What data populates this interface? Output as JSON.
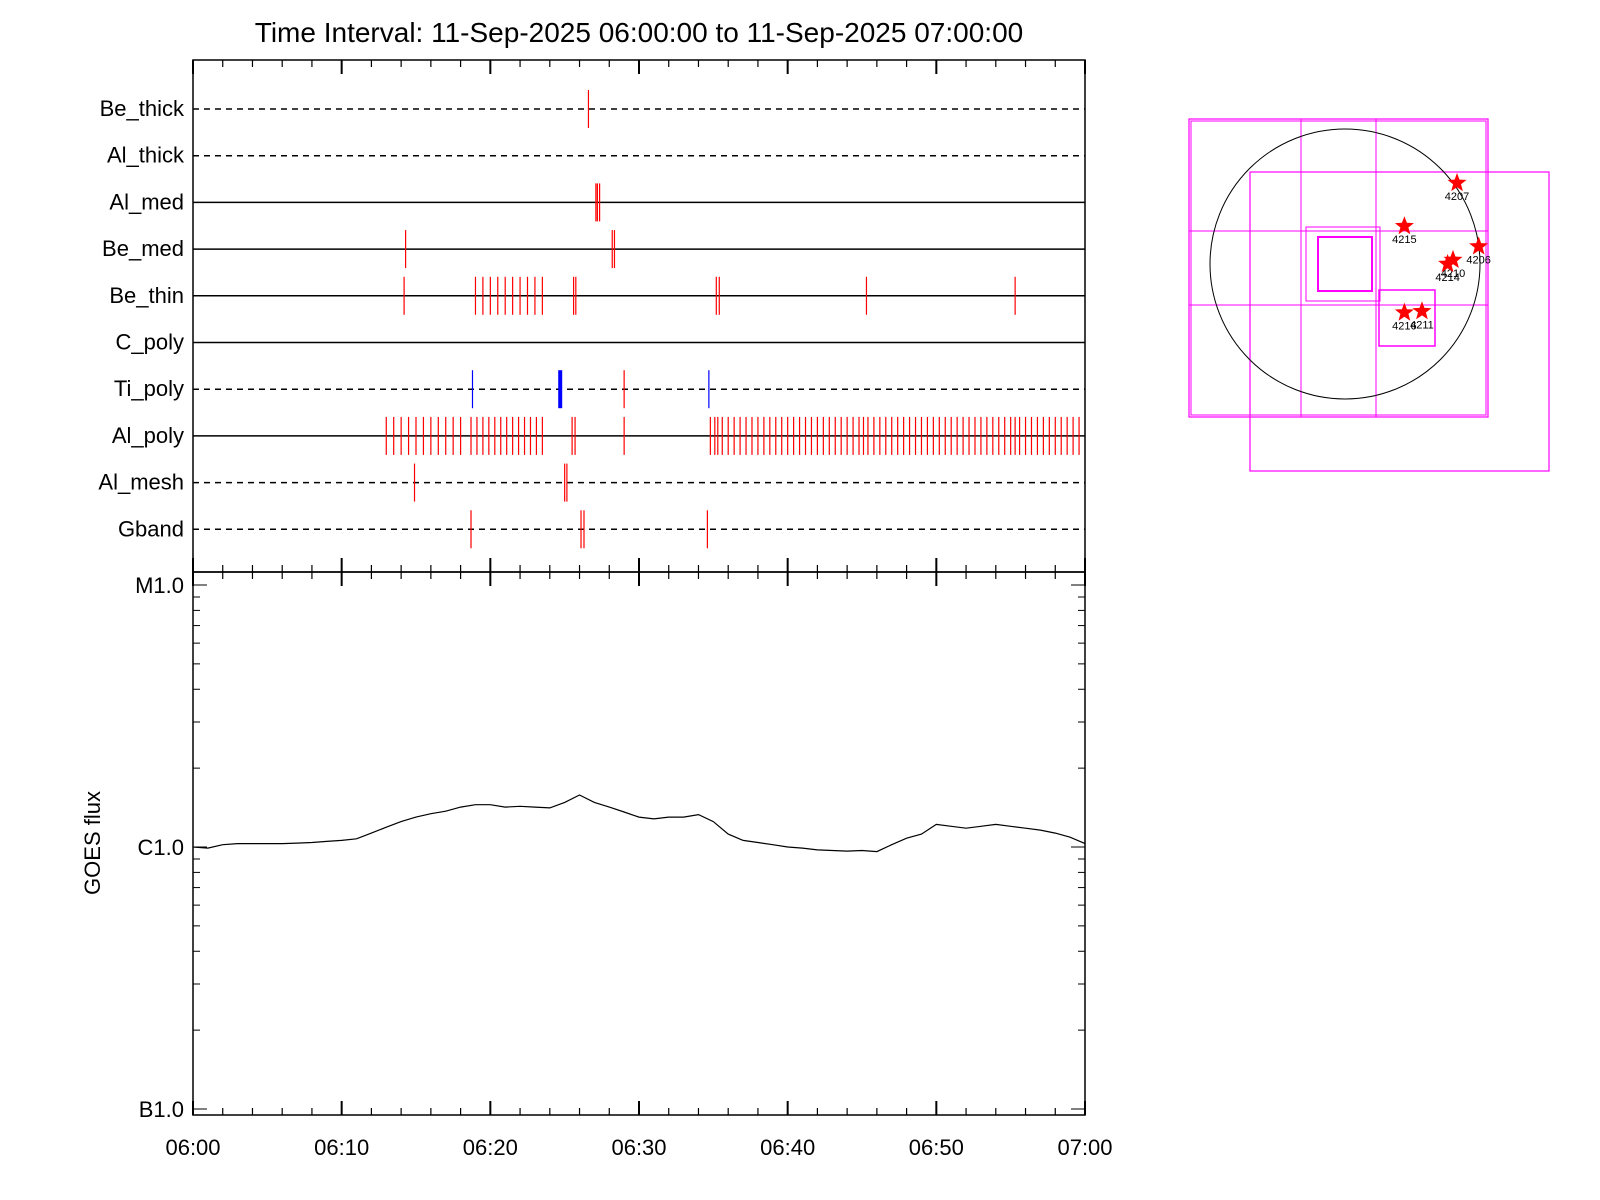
{
  "title": "Time Interval: 11-Sep-2025 06:00:00 to 11-Sep-2025 07:00:00",
  "colors": {
    "obs": "#ff0000",
    "flare": "#0000ff",
    "box": "#ff00ff",
    "star": "#ff0000",
    "line": "#000000"
  },
  "chart_data": [
    {
      "type": "event-timeline",
      "x_range_min": [
        0,
        60
      ],
      "x_unit": "minutes after 06:00",
      "filters": [
        {
          "name": "Be_thick",
          "style": "dashed"
        },
        {
          "name": "Al_thick",
          "style": "dashed"
        },
        {
          "name": "Al_med",
          "style": "solid"
        },
        {
          "name": "Be_med",
          "style": "solid"
        },
        {
          "name": "Be_thin",
          "style": "solid"
        },
        {
          "name": "C_poly",
          "style": "solid"
        },
        {
          "name": "Ti_poly",
          "style": "dashed"
        },
        {
          "name": "Al_poly",
          "style": "solid"
        },
        {
          "name": "Al_mesh",
          "style": "dashed"
        },
        {
          "name": "Gband",
          "style": "dashed"
        }
      ],
      "events": [
        {
          "filter": "Be_thick",
          "color": "red",
          "times": [
            26.6
          ]
        },
        {
          "filter": "Al_med",
          "color": "red",
          "times": [
            27.1,
            27.2,
            27.35
          ]
        },
        {
          "filter": "Be_med",
          "color": "red",
          "times": [
            14.3,
            28.2,
            28.35
          ]
        },
        {
          "filter": "Be_thin",
          "color": "red",
          "times": [
            14.2,
            19.0,
            19.5,
            20.0,
            20.5,
            21.0,
            21.5,
            22.0,
            22.5,
            23.0,
            23.5,
            25.6,
            25.75,
            35.2,
            35.4,
            45.3,
            55.3
          ]
        },
        {
          "filter": "Ti_poly",
          "color": "blue",
          "times": [
            18.8,
            34.7
          ]
        },
        {
          "filter": "Ti_poly",
          "color": "blue-thick",
          "times": [
            24.7
          ]
        },
        {
          "filter": "Ti_poly",
          "color": "red",
          "times": [
            29.0
          ]
        },
        {
          "filter": "Al_poly",
          "color": "red",
          "times": [
            13.0,
            13.5,
            14.0,
            14.5,
            15.0,
            15.5,
            16.0,
            16.5,
            17.0,
            17.5,
            18.0,
            18.7,
            19.1,
            19.5,
            19.9,
            20.3,
            20.7,
            21.1,
            21.5,
            21.9,
            22.3,
            22.7,
            23.1,
            23.5,
            25.5,
            25.7,
            29.0,
            34.8,
            35.1,
            35.3,
            35.6,
            36.0,
            36.4,
            36.8,
            37.2,
            37.6,
            38.0,
            38.4,
            38.8,
            39.2,
            39.6,
            40.0,
            40.4,
            40.8,
            41.2,
            41.6,
            42.0,
            42.4,
            42.8,
            43.2,
            43.6,
            44.0,
            44.4,
            44.8,
            45.1,
            45.4,
            45.8,
            46.2,
            46.6,
            47.0,
            47.4,
            47.8,
            48.2,
            48.6,
            49.0,
            49.4,
            49.8,
            50.2,
            50.6,
            51.0,
            51.4,
            51.8,
            52.2,
            52.6,
            53.0,
            53.4,
            53.8,
            54.2,
            54.6,
            55.0,
            55.3,
            55.6,
            56.0,
            56.4,
            56.8,
            57.2,
            57.6,
            58.0,
            58.4,
            58.8,
            59.2,
            59.6
          ]
        },
        {
          "filter": "Al_mesh",
          "color": "red",
          "times": [
            14.9,
            25.0,
            25.15
          ]
        },
        {
          "filter": "Gband",
          "color": "red",
          "times": [
            18.7,
            26.1,
            26.3,
            34.6
          ]
        }
      ]
    },
    {
      "type": "line",
      "ylabel": "GOES flux",
      "xlabel": "",
      "y_scale": "log",
      "ylim": [
        1e-07,
        1e-05
      ],
      "y_ticks": [
        {
          "value": 1e-05,
          "label": "M1.0"
        },
        {
          "value": 1e-06,
          "label": "C1.0"
        },
        {
          "value": 1e-07,
          "label": "B1.0"
        }
      ],
      "x_ticks": [
        "06:00",
        "06:10",
        "06:20",
        "06:30",
        "06:40",
        "06:50",
        "07:00"
      ],
      "x_minutes": [
        0,
        1,
        2,
        3,
        4,
        5,
        6,
        7,
        8,
        9,
        10,
        11,
        12,
        13,
        14,
        15,
        16,
        17,
        18,
        19,
        20,
        21,
        22,
        23,
        24,
        25,
        26,
        27,
        28,
        29,
        30,
        31,
        32,
        33,
        34,
        35,
        36,
        37,
        38,
        39,
        40,
        41,
        42,
        43,
        44,
        45,
        46,
        47,
        48,
        49,
        50,
        51,
        52,
        53,
        54,
        55,
        56,
        57,
        58,
        59,
        60
      ],
      "values": [
        1e-06,
        9.9e-07,
        1.02e-06,
        1.03e-06,
        1.03e-06,
        1.03e-06,
        1.03e-06,
        1.035e-06,
        1.04e-06,
        1.05e-06,
        1.06e-06,
        1.075e-06,
        1.13e-06,
        1.19e-06,
        1.25e-06,
        1.3e-06,
        1.34e-06,
        1.37e-06,
        1.42e-06,
        1.45e-06,
        1.45e-06,
        1.42e-06,
        1.43e-06,
        1.42e-06,
        1.41e-06,
        1.48e-06,
        1.58e-06,
        1.48e-06,
        1.42e-06,
        1.36e-06,
        1.3e-06,
        1.28e-06,
        1.3e-06,
        1.3e-06,
        1.33e-06,
        1.25e-06,
        1.12e-06,
        1.06e-06,
        1.04e-06,
        1.02e-06,
        1e-06,
        9.9e-07,
        9.75e-07,
        9.7e-07,
        9.65e-07,
        9.7e-07,
        9.6e-07,
        1.02e-06,
        1.08e-06,
        1.12e-06,
        1.22e-06,
        1.2e-06,
        1.18e-06,
        1.2e-06,
        1.22e-06,
        1.2e-06,
        1.18e-06,
        1.16e-06,
        1.13e-06,
        1.09e-06,
        1.03e-06
      ]
    }
  ],
  "disk_map": {
    "active_regions": [
      {
        "label": "4207",
        "rx": 0.83,
        "ry": 0.6
      },
      {
        "label": "4215",
        "rx": 0.44,
        "ry": 0.28
      },
      {
        "label": "4206",
        "rx": 0.99,
        "ry": 0.13
      },
      {
        "label": "4210",
        "rx": 0.8,
        "ry": 0.03
      },
      {
        "label": "4214",
        "rx": 0.76,
        "ry": 0.0
      },
      {
        "label": "4216",
        "rx": 0.44,
        "ry": -0.36
      },
      {
        "label": "4211",
        "rx": 0.57,
        "ry": -0.35
      }
    ]
  }
}
